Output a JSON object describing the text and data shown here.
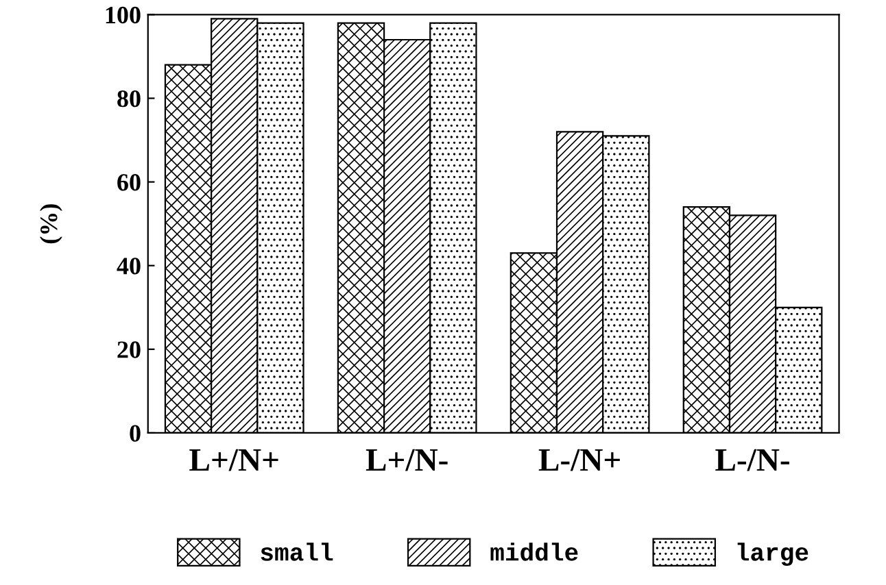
{
  "chart_data": {
    "type": "bar",
    "ylabel": "(%)",
    "categories": [
      "L+/N+",
      "L+/N-",
      "L-/N+",
      "L-/N-"
    ],
    "series": [
      {
        "name": "small",
        "color": "#000000",
        "values": [
          88,
          98,
          43,
          54
        ]
      },
      {
        "name": "middle",
        "color": "#000000",
        "values": [
          99,
          94,
          72,
          52
        ]
      },
      {
        "name": "large",
        "color": "#000000",
        "values": [
          98,
          98,
          71,
          30
        ]
      }
    ],
    "ylim": [
      0,
      100
    ],
    "yticks": [
      0,
      20,
      40,
      60,
      80,
      100
    ],
    "grid": false,
    "legend": "bottom"
  }
}
